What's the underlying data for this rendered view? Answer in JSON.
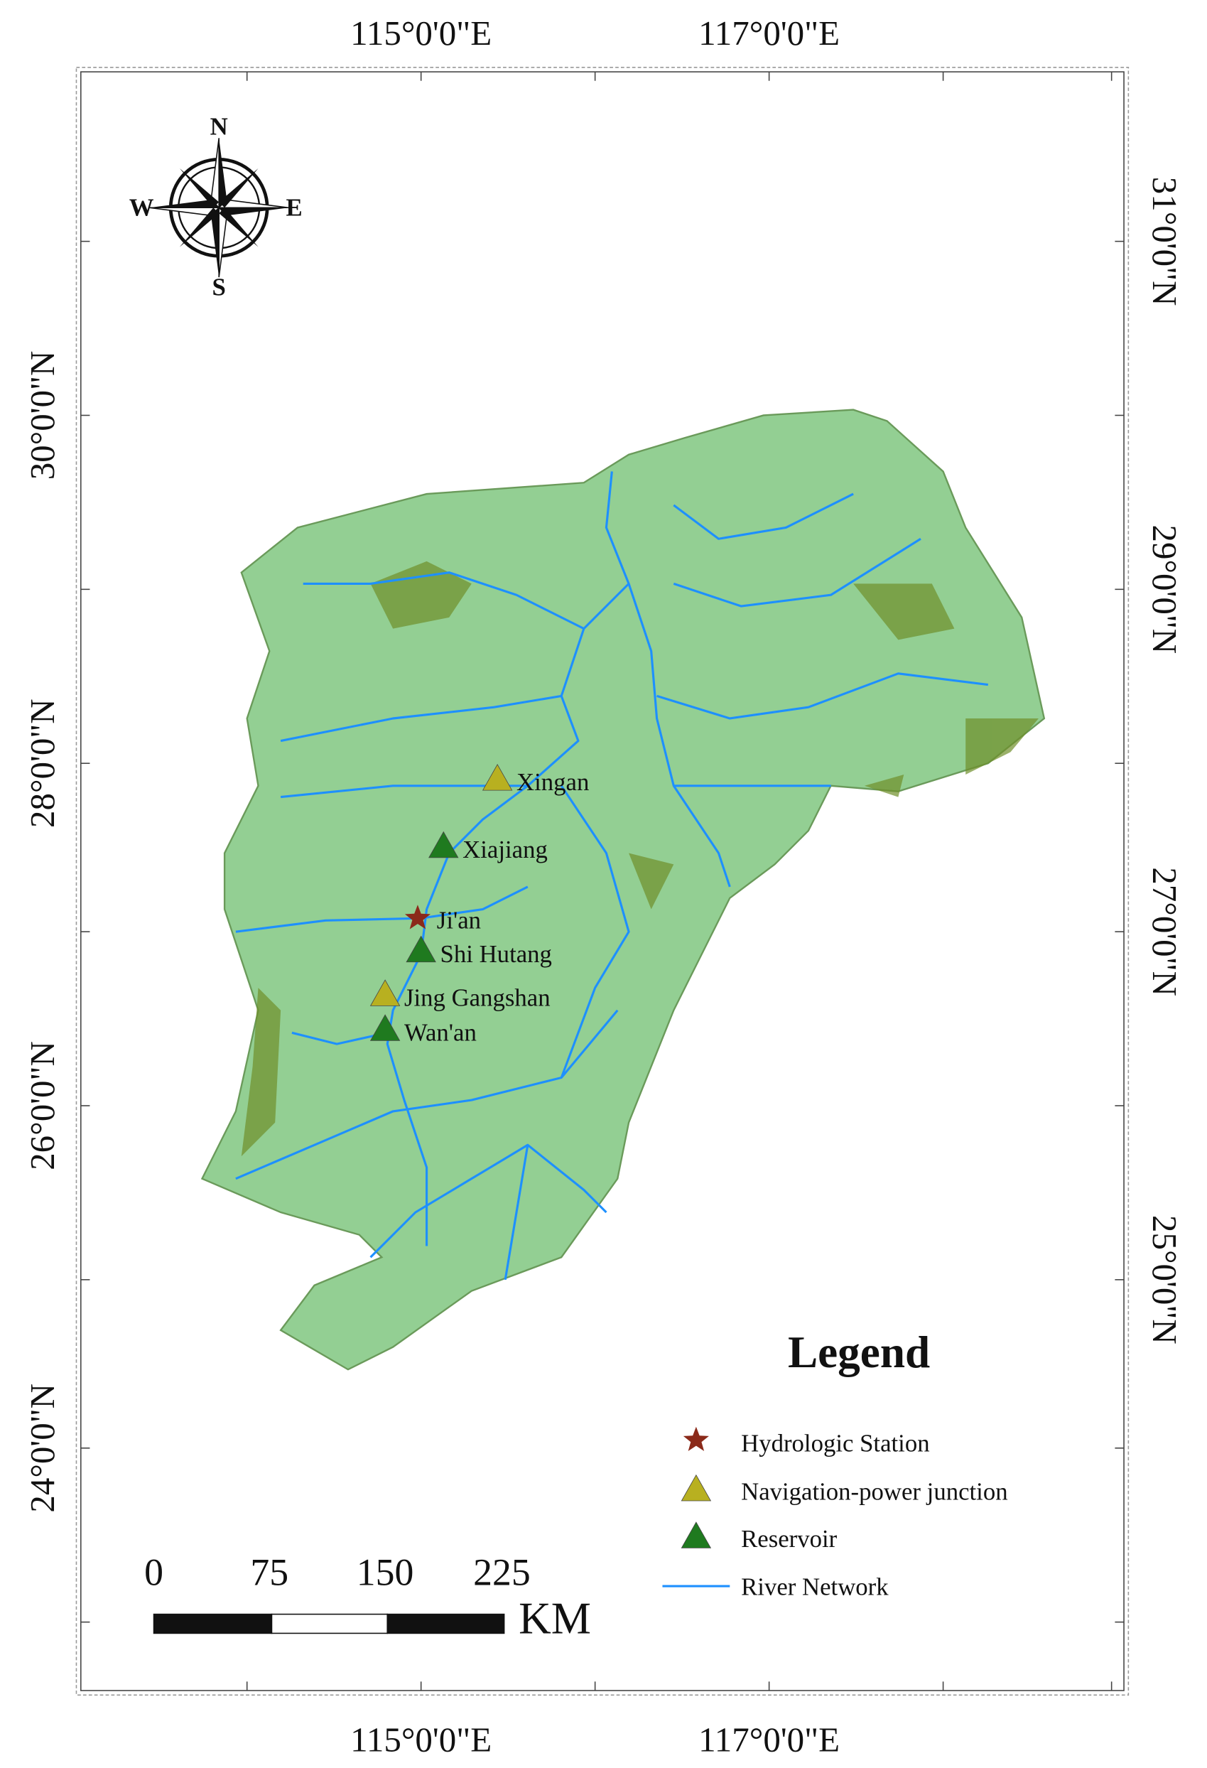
{
  "map": {
    "top_labels": [
      "115°0'0\"E",
      "117°0'0\"E"
    ],
    "bottom_labels": [
      "115°0'0\"E",
      "117°0'0\"E"
    ],
    "left_labels": [
      "30°0'0\"N",
      "28°0'0\"N",
      "26°0'0\"N",
      "24°0'0\"N"
    ],
    "right_labels": [
      "31°0'0\"N",
      "29°0'0\"N",
      "27°0'0\"N",
      "25°0'0\"N"
    ],
    "compass": {
      "n": "N",
      "s": "S",
      "w": "W",
      "e": "E"
    },
    "stations": [
      {
        "label": "Xingan"
      },
      {
        "label": "Xiajiang"
      },
      {
        "label": "Ji'an"
      },
      {
        "label": "Shi Hutang"
      },
      {
        "label": "Jing Gangshan"
      },
      {
        "label": "Wan'an"
      }
    ],
    "legend": {
      "title": "Legend",
      "items": [
        "Hydrologic Station",
        "Navigation-power junction",
        "Reservoir",
        "River Network"
      ]
    },
    "scale": {
      "labels": [
        "0",
        "75",
        "150",
        "225"
      ],
      "unit": "KM"
    }
  }
}
